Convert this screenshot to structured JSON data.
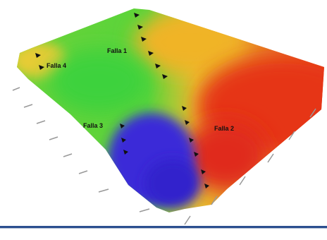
{
  "faults": [
    {
      "label": "Falla 1"
    },
    {
      "label": "Falla 4"
    },
    {
      "label": "Falla 3"
    },
    {
      "label": "Falla 2"
    }
  ]
}
